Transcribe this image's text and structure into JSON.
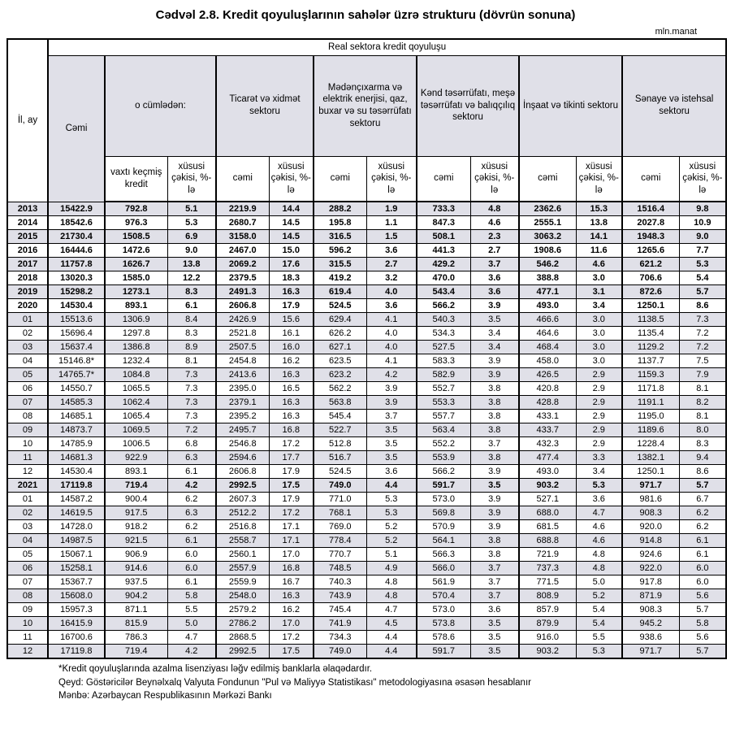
{
  "title": "Cədvəl 2.8. Kredit qoyuluşlarının sahələr üzrə strukturu (dövrün sonuna)",
  "unit": "mln.manat",
  "colors": {
    "header_fill": "#e0e0e8",
    "row_stripe": "#e0e0e8",
    "border": "#000000"
  },
  "table": {
    "top_header": "Real sektora kredit qoyuluşu",
    "period_header": "İl, ay",
    "total_header": "Cəmi",
    "groups": [
      {
        "label": "o cümlədən:",
        "sub": [
          "vaxtı keçmiş kredit",
          "xüsusi çəkisi, %-lə"
        ]
      },
      {
        "label": "Ticarət və xidmət sektoru",
        "sub": [
          "cəmi",
          "xüsusi çəkisi, %-lə"
        ]
      },
      {
        "label": "Mədənçıxarma və elektrik enerjisi, qaz, buxar və su təsərrüfatı sektoru",
        "sub": [
          "cəmi",
          "xüsusi çəkisi, %-lə"
        ]
      },
      {
        "label": "Kənd təsərrüfatı, meşə təsərrüfatı və balıqçılıq sektoru",
        "sub": [
          "cəmi",
          "xüsusi çəkisi, %-lə"
        ]
      },
      {
        "label": "İnşaat və tikinti sektoru",
        "sub": [
          "cəmi",
          "xüsusi çəkisi, %-lə"
        ]
      },
      {
        "label": "Sənaye və istehsal sektoru",
        "sub": [
          "cəmi",
          "xüsusi çəkisi, %-lə"
        ]
      }
    ],
    "rows": [
      {
        "period": "2013",
        "bold": true,
        "values": [
          "15422.9",
          "792.8",
          "5.1",
          "2219.9",
          "14.4",
          "288.2",
          "1.9",
          "733.3",
          "4.8",
          "2362.6",
          "15.3",
          "1516.4",
          "9.8"
        ]
      },
      {
        "period": "2014",
        "bold": true,
        "values": [
          "18542.6",
          "976.3",
          "5.3",
          "2680.7",
          "14.5",
          "195.8",
          "1.1",
          "847.3",
          "4.6",
          "2555.1",
          "13.8",
          "2027.8",
          "10.9"
        ]
      },
      {
        "period": "2015",
        "bold": true,
        "values": [
          "21730.4",
          "1508.5",
          "6.9",
          "3158.0",
          "14.5",
          "316.5",
          "1.5",
          "508.1",
          "2.3",
          "3063.2",
          "14.1",
          "1948.3",
          "9.0"
        ]
      },
      {
        "period": "2016",
        "bold": true,
        "values": [
          "16444.6",
          "1472.6",
          "9.0",
          "2467.0",
          "15.0",
          "596.2",
          "3.6",
          "441.3",
          "2.7",
          "1908.6",
          "11.6",
          "1265.6",
          "7.7"
        ]
      },
      {
        "period": "2017",
        "bold": true,
        "values": [
          "11757.8",
          "1626.7",
          "13.8",
          "2069.2",
          "17.6",
          "315.5",
          "2.7",
          "429.2",
          "3.7",
          "546.2",
          "4.6",
          "621.2",
          "5.3"
        ]
      },
      {
        "period": "2018",
        "bold": true,
        "values": [
          "13020.3",
          "1585.0",
          "12.2",
          "2379.5",
          "18.3",
          "419.2",
          "3.2",
          "470.0",
          "3.6",
          "388.8",
          "3.0",
          "706.6",
          "5.4"
        ]
      },
      {
        "period": "2019",
        "bold": true,
        "values": [
          "15298.2",
          "1273.1",
          "8.3",
          "2491.3",
          "16.3",
          "619.4",
          "4.0",
          "543.4",
          "3.6",
          "477.1",
          "3.1",
          "872.6",
          "5.7"
        ]
      },
      {
        "period": "2020",
        "bold": true,
        "values": [
          "14530.4",
          "893.1",
          "6.1",
          "2606.8",
          "17.9",
          "524.5",
          "3.6",
          "566.2",
          "3.9",
          "493.0",
          "3.4",
          "1250.1",
          "8.6"
        ]
      },
      {
        "period": "01",
        "bold": false,
        "values": [
          "15513.6",
          "1306.9",
          "8.4",
          "2426.9",
          "15.6",
          "629.4",
          "4.1",
          "540.3",
          "3.5",
          "466.6",
          "3.0",
          "1138.5",
          "7.3"
        ]
      },
      {
        "period": "02",
        "bold": false,
        "values": [
          "15696.4",
          "1297.8",
          "8.3",
          "2521.8",
          "16.1",
          "626.2",
          "4.0",
          "534.3",
          "3.4",
          "464.6",
          "3.0",
          "1135.4",
          "7.2"
        ]
      },
      {
        "period": "03",
        "bold": false,
        "values": [
          "15637.4",
          "1386.8",
          "8.9",
          "2507.5",
          "16.0",
          "627.1",
          "4.0",
          "527.5",
          "3.4",
          "468.4",
          "3.0",
          "1129.2",
          "7.2"
        ]
      },
      {
        "period": "04",
        "bold": false,
        "values": [
          "15146.8*",
          "1232.4",
          "8.1",
          "2454.8",
          "16.2",
          "623.5",
          "4.1",
          "583.3",
          "3.9",
          "458.0",
          "3.0",
          "1137.7",
          "7.5"
        ]
      },
      {
        "period": "05",
        "bold": false,
        "values": [
          "14765.7*",
          "1084.8",
          "7.3",
          "2413.6",
          "16.3",
          "623.2",
          "4.2",
          "582.9",
          "3.9",
          "426.5",
          "2.9",
          "1159.3",
          "7.9"
        ]
      },
      {
        "period": "06",
        "bold": false,
        "values": [
          "14550.7",
          "1065.5",
          "7.3",
          "2395.0",
          "16.5",
          "562.2",
          "3.9",
          "552.7",
          "3.8",
          "420.8",
          "2.9",
          "1171.8",
          "8.1"
        ]
      },
      {
        "period": "07",
        "bold": false,
        "values": [
          "14585.3",
          "1062.4",
          "7.3",
          "2379.1",
          "16.3",
          "563.8",
          "3.9",
          "553.3",
          "3.8",
          "428.8",
          "2.9",
          "1191.1",
          "8.2"
        ]
      },
      {
        "period": "08",
        "bold": false,
        "values": [
          "14685.1",
          "1065.4",
          "7.3",
          "2395.2",
          "16.3",
          "545.4",
          "3.7",
          "557.7",
          "3.8",
          "433.1",
          "2.9",
          "1195.0",
          "8.1"
        ]
      },
      {
        "period": "09",
        "bold": false,
        "values": [
          "14873.7",
          "1069.5",
          "7.2",
          "2495.7",
          "16.8",
          "522.7",
          "3.5",
          "563.4",
          "3.8",
          "433.7",
          "2.9",
          "1189.6",
          "8.0"
        ]
      },
      {
        "period": "10",
        "bold": false,
        "values": [
          "14785.9",
          "1006.5",
          "6.8",
          "2546.8",
          "17.2",
          "512.8",
          "3.5",
          "552.2",
          "3.7",
          "432.3",
          "2.9",
          "1228.4",
          "8.3"
        ]
      },
      {
        "period": "11",
        "bold": false,
        "values": [
          "14681.3",
          "922.9",
          "6.3",
          "2594.6",
          "17.7",
          "516.7",
          "3.5",
          "553.9",
          "3.8",
          "477.4",
          "3.3",
          "1382.1",
          "9.4"
        ]
      },
      {
        "period": "12",
        "bold": false,
        "values": [
          "14530.4",
          "893.1",
          "6.1",
          "2606.8",
          "17.9",
          "524.5",
          "3.6",
          "566.2",
          "3.9",
          "493.0",
          "3.4",
          "1250.1",
          "8.6"
        ]
      },
      {
        "period": "2021",
        "bold": true,
        "values": [
          "17119.8",
          "719.4",
          "4.2",
          "2992.5",
          "17.5",
          "749.0",
          "4.4",
          "591.7",
          "3.5",
          "903.2",
          "5.3",
          "971.7",
          "5.7"
        ]
      },
      {
        "period": "01",
        "bold": false,
        "values": [
          "14587.2",
          "900.4",
          "6.2",
          "2607.3",
          "17.9",
          "771.0",
          "5.3",
          "573.0",
          "3.9",
          "527.1",
          "3.6",
          "981.6",
          "6.7"
        ]
      },
      {
        "period": "02",
        "bold": false,
        "values": [
          "14619.5",
          "917.5",
          "6.3",
          "2512.2",
          "17.2",
          "768.1",
          "5.3",
          "569.8",
          "3.9",
          "688.0",
          "4.7",
          "908.3",
          "6.2"
        ]
      },
      {
        "period": "03",
        "bold": false,
        "values": [
          "14728.0",
          "918.2",
          "6.2",
          "2516.8",
          "17.1",
          "769.0",
          "5.2",
          "570.9",
          "3.9",
          "681.5",
          "4.6",
          "920.0",
          "6.2"
        ]
      },
      {
        "period": "04",
        "bold": false,
        "values": [
          "14987.5",
          "921.5",
          "6.1",
          "2558.7",
          "17.1",
          "778.4",
          "5.2",
          "564.1",
          "3.8",
          "688.8",
          "4.6",
          "914.8",
          "6.1"
        ]
      },
      {
        "period": "05",
        "bold": false,
        "values": [
          "15067.1",
          "906.9",
          "6.0",
          "2560.1",
          "17.0",
          "770.7",
          "5.1",
          "566.3",
          "3.8",
          "721.9",
          "4.8",
          "924.6",
          "6.1"
        ]
      },
      {
        "period": "06",
        "bold": false,
        "values": [
          "15258.1",
          "914.6",
          "6.0",
          "2557.9",
          "16.8",
          "748.5",
          "4.9",
          "566.0",
          "3.7",
          "737.3",
          "4.8",
          "922.0",
          "6.0"
        ]
      },
      {
        "period": "07",
        "bold": false,
        "values": [
          "15367.7",
          "937.5",
          "6.1",
          "2559.9",
          "16.7",
          "740.3",
          "4.8",
          "561.9",
          "3.7",
          "771.5",
          "5.0",
          "917.8",
          "6.0"
        ]
      },
      {
        "period": "08",
        "bold": false,
        "values": [
          "15608.0",
          "904.2",
          "5.8",
          "2548.0",
          "16.3",
          "743.9",
          "4.8",
          "570.4",
          "3.7",
          "808.9",
          "5.2",
          "871.9",
          "5.6"
        ]
      },
      {
        "period": "09",
        "bold": false,
        "values": [
          "15957.3",
          "871.1",
          "5.5",
          "2579.2",
          "16.2",
          "745.4",
          "4.7",
          "573.0",
          "3.6",
          "857.9",
          "5.4",
          "908.3",
          "5.7"
        ]
      },
      {
        "period": "10",
        "bold": false,
        "values": [
          "16415.9",
          "815.9",
          "5.0",
          "2786.2",
          "17.0",
          "741.9",
          "4.5",
          "573.8",
          "3.5",
          "879.9",
          "5.4",
          "945.2",
          "5.8"
        ]
      },
      {
        "period": "11",
        "bold": false,
        "values": [
          "16700.6",
          "786.3",
          "4.7",
          "2868.5",
          "17.2",
          "734.3",
          "4.4",
          "578.6",
          "3.5",
          "916.0",
          "5.5",
          "938.6",
          "5.6"
        ]
      },
      {
        "period": "12",
        "bold": false,
        "values": [
          "17119.8",
          "719.4",
          "4.2",
          "2992.5",
          "17.5",
          "749.0",
          "4.4",
          "591.7",
          "3.5",
          "903.2",
          "5.3",
          "971.7",
          "5.7"
        ]
      }
    ]
  },
  "footnotes": [
    "*Kredit qoyuluşlarında azalma lisenziyası ləğv edilmiş banklarla əlaqədardır.",
    "Qeyd: Göstəricilər Beynəlxalq Valyuta Fondunun \"Pul və Maliyyə Statistikası\" metodologiyasına əsasən hesablanır",
    "Mənbə: Azərbaycan Respublikasının Mərkəzi Bankı"
  ]
}
